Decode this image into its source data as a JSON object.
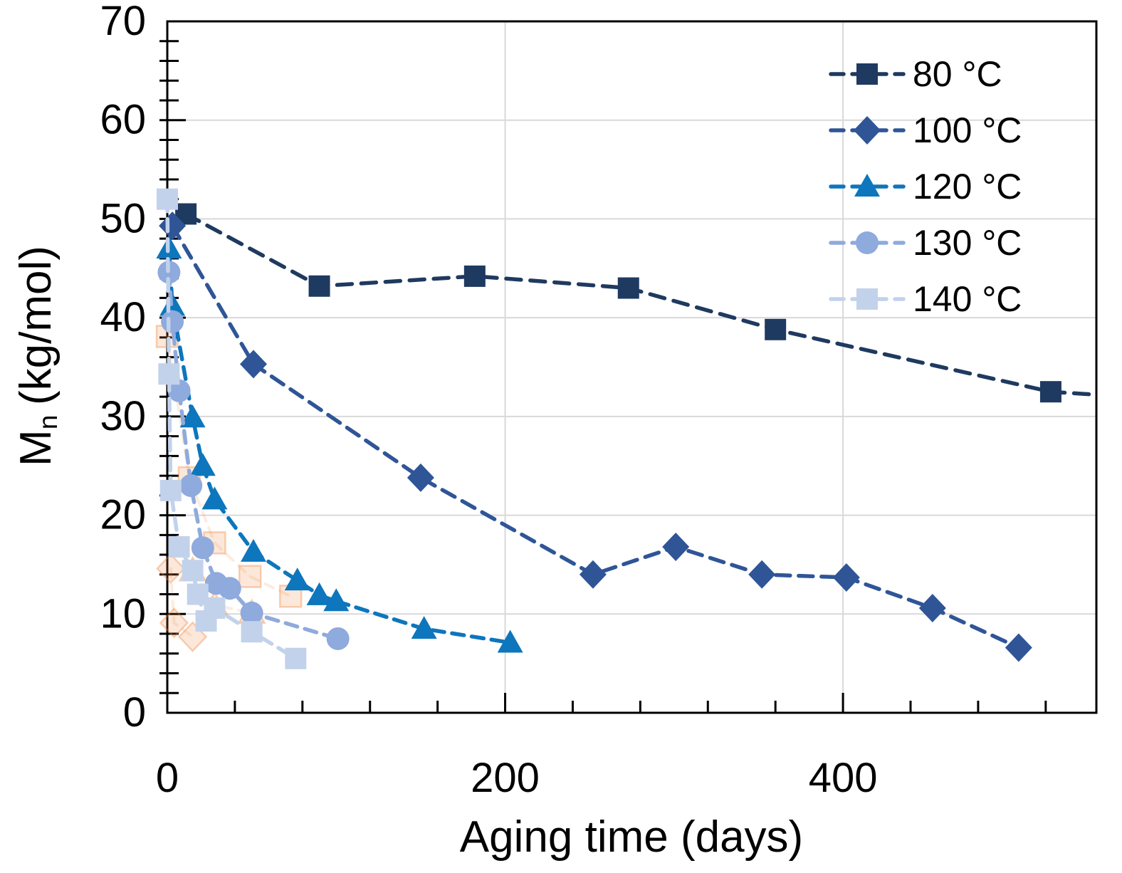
{
  "chart_data": {
    "type": "line",
    "title": "",
    "xlabel": "Aging time (days)",
    "ylabel": "Mn (kg/mol)",
    "ylabel_parts": {
      "main": "M",
      "sub": "n",
      "rest": "(kg/mol)"
    },
    "xlim": [
      0,
      550
    ],
    "ylim": [
      0,
      70
    ],
    "x_tick_values": [
      0,
      200,
      400
    ],
    "x_tick_labels": [
      "0",
      "200",
      "400"
    ],
    "x_minor_step": 40,
    "y_tick_values": [
      0,
      10,
      20,
      30,
      40,
      50,
      60,
      70
    ],
    "y_tick_labels": [
      "0",
      "10",
      "20",
      "30",
      "40",
      "50",
      "60",
      "70"
    ],
    "y_minor_step": 2,
    "grid": {
      "color": "#d9d9d9",
      "x_lines": [
        200,
        400
      ],
      "y_lines": [
        10,
        20,
        30,
        40,
        50,
        60
      ]
    },
    "legend_position": "top-right",
    "series": [
      {
        "label": "80 °C",
        "marker": "square",
        "color": "#1f3a60",
        "dash": [
          21,
          13
        ],
        "points": [
          [
            11,
            50.5
          ],
          [
            90,
            43.2
          ],
          [
            182,
            44.2
          ],
          [
            273,
            43.0
          ],
          [
            360,
            38.8
          ],
          [
            523,
            32.5
          ]
        ],
        "line_extend": [
          [
            550,
            32.2
          ]
        ]
      },
      {
        "label": "100 °C",
        "marker": "diamond",
        "color": "#2f5597",
        "dash": [
          20,
          12
        ],
        "points": [
          [
            3,
            49.3
          ],
          [
            51,
            35.3
          ],
          [
            150,
            23.8
          ],
          [
            252,
            14.0
          ],
          [
            301,
            16.8
          ],
          [
            352,
            14.0
          ],
          [
            402,
            13.7
          ],
          [
            453,
            10.6
          ],
          [
            504,
            6.6
          ]
        ]
      },
      {
        "label": "120 °C",
        "marker": "triangle",
        "color": "#0d76bc",
        "dash": [
          17,
          11
        ],
        "points": [
          [
            1,
            47.0
          ],
          [
            3,
            41.2
          ],
          [
            15,
            29.9
          ],
          [
            21,
            25.0
          ],
          [
            28,
            21.6
          ],
          [
            51,
            16.3
          ],
          [
            77,
            13.4
          ],
          [
            90,
            11.9
          ],
          [
            100,
            11.3
          ],
          [
            152,
            8.5
          ],
          [
            203,
            7.1
          ]
        ]
      },
      {
        "label": "130 °C",
        "marker": "circle",
        "color": "#8faadc",
        "dash": [
          17,
          11
        ],
        "points": [
          [
            1,
            44.6
          ],
          [
            3,
            39.6
          ],
          [
            7,
            32.6
          ],
          [
            14,
            23.0
          ],
          [
            21,
            16.7
          ],
          [
            29,
            13.1
          ],
          [
            37,
            12.6
          ],
          [
            50,
            10.1
          ],
          [
            101,
            7.5
          ]
        ]
      },
      {
        "label": "140 °C",
        "marker": "square",
        "color": "#c2d2eb",
        "dash": [
          17,
          11
        ],
        "points": [
          [
            0,
            52.0
          ],
          [
            1,
            34.3
          ],
          [
            2,
            22.5
          ],
          [
            7,
            16.8
          ],
          [
            15,
            14.4
          ],
          [
            18,
            12.0
          ],
          [
            23,
            9.3
          ],
          [
            28,
            10.6
          ],
          [
            50,
            8.2
          ],
          [
            76,
            5.5
          ]
        ]
      }
    ],
    "ghost_series": [
      {
        "marker": "square",
        "points": [
          [
            0,
            38.1
          ],
          [
            13,
            23.8
          ],
          [
            28,
            17.2
          ],
          [
            49,
            13.8
          ],
          [
            73,
            11.8
          ]
        ]
      },
      {
        "marker": "triangle",
        "points": [
          [
            15,
            14.4
          ],
          [
            28,
            10.9
          ],
          [
            50,
            10.1
          ]
        ]
      },
      {
        "marker": "diamond",
        "points": [
          [
            2,
            14.6
          ],
          [
            4,
            9.1
          ],
          [
            15,
            7.7
          ]
        ]
      }
    ],
    "ghost_color": "#ed7d31",
    "frame_color": "#000000"
  }
}
